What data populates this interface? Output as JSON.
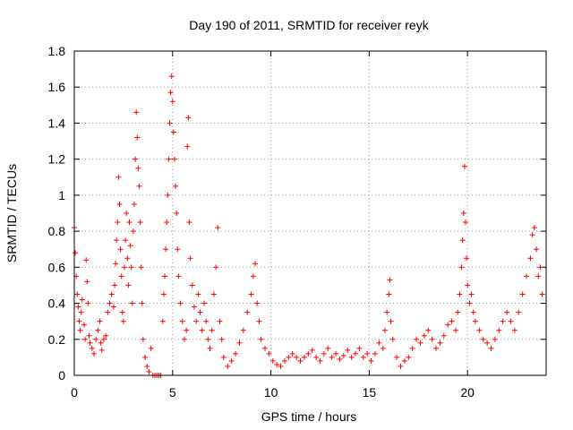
{
  "chart_data": {
    "type": "scatter",
    "title": "Day 190 of 2011, SRMTID for receiver reyk",
    "xlabel": "GPS time / hours",
    "ylabel": "SRMTID / TECUs",
    "xlim": [
      0,
      24
    ],
    "ylim": [
      0,
      1.8
    ],
    "xticks": [
      0,
      5,
      10,
      15,
      20
    ],
    "xtick_labels": [
      "0",
      "5",
      "10",
      "15",
      "20"
    ],
    "yticks": [
      0,
      0.2,
      0.4,
      0.6,
      0.8,
      1.0,
      1.2,
      1.4,
      1.6,
      1.8
    ],
    "ytick_labels": [
      "0",
      "0.2",
      "0.4",
      "0.6",
      "0.8",
      "1",
      "1.2",
      "1.4",
      "1.6",
      "1.8"
    ],
    "grid": true,
    "marker": "+",
    "color": "#ff0000",
    "series": [
      {
        "name": "SRMTID",
        "points": [
          [
            0.0,
            0.82
          ],
          [
            0.05,
            0.68
          ],
          [
            0.1,
            0.55
          ],
          [
            0.15,
            0.45
          ],
          [
            0.2,
            0.38
          ],
          [
            0.25,
            0.3
          ],
          [
            0.3,
            0.25
          ],
          [
            0.35,
            0.35
          ],
          [
            0.4,
            0.42
          ],
          [
            0.5,
            0.28
          ],
          [
            0.55,
            0.2
          ],
          [
            0.6,
            0.64
          ],
          [
            0.65,
            0.52
          ],
          [
            0.7,
            0.4
          ],
          [
            0.75,
            0.22
          ],
          [
            0.8,
            0.18
          ],
          [
            0.9,
            0.15
          ],
          [
            1.0,
            0.12
          ],
          [
            1.1,
            0.2
          ],
          [
            1.2,
            0.25
          ],
          [
            1.3,
            0.3
          ],
          [
            1.35,
            0.18
          ],
          [
            1.4,
            0.14
          ],
          [
            1.5,
            0.2
          ],
          [
            1.6,
            0.22
          ],
          [
            1.7,
            0.35
          ],
          [
            1.8,
            0.4
          ],
          [
            1.9,
            0.45
          ],
          [
            2.0,
            0.38
          ],
          [
            2.05,
            0.5
          ],
          [
            2.1,
            0.62
          ],
          [
            2.15,
            0.75
          ],
          [
            2.2,
            0.85
          ],
          [
            2.25,
            1.1
          ],
          [
            2.3,
            0.95
          ],
          [
            2.35,
            0.7
          ],
          [
            2.4,
            0.55
          ],
          [
            2.45,
            0.35
          ],
          [
            2.5,
            0.3
          ],
          [
            2.55,
            0.6
          ],
          [
            2.6,
            0.75
          ],
          [
            2.65,
            0.9
          ],
          [
            2.7,
            0.65
          ],
          [
            2.75,
            0.5
          ],
          [
            2.8,
            0.85
          ],
          [
            2.85,
            0.72
          ],
          [
            2.9,
            0.6
          ],
          [
            2.95,
            0.4
          ],
          [
            3.0,
            0.8
          ],
          [
            3.05,
            0.95
          ],
          [
            3.1,
            1.2
          ],
          [
            3.15,
            1.46
          ],
          [
            3.2,
            1.32
          ],
          [
            3.25,
            1.15
          ],
          [
            3.3,
            1.05
          ],
          [
            3.35,
            0.85
          ],
          [
            3.4,
            0.6
          ],
          [
            3.45,
            0.4
          ],
          [
            3.5,
            0.2
          ],
          [
            3.6,
            0.1
          ],
          [
            3.7,
            0.05
          ],
          [
            3.8,
            0.02
          ],
          [
            3.9,
            0.15
          ],
          [
            4.0,
            0.0
          ],
          [
            4.1,
            0.0
          ],
          [
            4.2,
            0.0
          ],
          [
            4.3,
            0.0
          ],
          [
            4.4,
            0.0
          ],
          [
            4.5,
            0.3
          ],
          [
            4.55,
            0.45
          ],
          [
            4.6,
            0.55
          ],
          [
            4.65,
            0.7
          ],
          [
            4.7,
            0.85
          ],
          [
            4.75,
            1.0
          ],
          [
            4.8,
            1.2
          ],
          [
            4.85,
            1.4
          ],
          [
            4.9,
            1.57
          ],
          [
            4.95,
            1.66
          ],
          [
            5.0,
            1.52
          ],
          [
            5.05,
            1.35
          ],
          [
            5.1,
            1.2
          ],
          [
            5.15,
            1.05
          ],
          [
            5.2,
            0.9
          ],
          [
            5.25,
            0.7
          ],
          [
            5.3,
            0.55
          ],
          [
            5.4,
            0.4
          ],
          [
            5.5,
            0.3
          ],
          [
            5.6,
            0.2
          ],
          [
            5.7,
            0.25
          ],
          [
            5.75,
            1.27
          ],
          [
            5.8,
            1.43
          ],
          [
            5.85,
            0.85
          ],
          [
            5.9,
            0.65
          ],
          [
            6.0,
            0.5
          ],
          [
            6.1,
            0.38
          ],
          [
            6.2,
            0.3
          ],
          [
            6.3,
            0.45
          ],
          [
            6.4,
            0.35
          ],
          [
            6.5,
            0.25
          ],
          [
            6.6,
            0.4
          ],
          [
            6.7,
            0.3
          ],
          [
            6.8,
            0.2
          ],
          [
            6.9,
            0.15
          ],
          [
            7.0,
            0.25
          ],
          [
            7.1,
            0.45
          ],
          [
            7.2,
            0.6
          ],
          [
            7.3,
            0.82
          ],
          [
            7.4,
            0.3
          ],
          [
            7.5,
            0.2
          ],
          [
            7.6,
            0.1
          ],
          [
            7.8,
            0.05
          ],
          [
            8.0,
            0.08
          ],
          [
            8.2,
            0.12
          ],
          [
            8.4,
            0.18
          ],
          [
            8.6,
            0.25
          ],
          [
            8.8,
            0.35
          ],
          [
            9.0,
            0.45
          ],
          [
            9.1,
            0.55
          ],
          [
            9.2,
            0.62
          ],
          [
            9.3,
            0.4
          ],
          [
            9.4,
            0.3
          ],
          [
            9.5,
            0.2
          ],
          [
            9.7,
            0.15
          ],
          [
            9.9,
            0.12
          ],
          [
            10.1,
            0.08
          ],
          [
            10.3,
            0.06
          ],
          [
            10.5,
            0.05
          ],
          [
            10.7,
            0.08
          ],
          [
            10.9,
            0.1
          ],
          [
            11.1,
            0.12
          ],
          [
            11.3,
            0.1
          ],
          [
            11.5,
            0.08
          ],
          [
            11.7,
            0.1
          ],
          [
            11.9,
            0.12
          ],
          [
            12.1,
            0.14
          ],
          [
            12.3,
            0.1
          ],
          [
            12.5,
            0.08
          ],
          [
            12.7,
            0.12
          ],
          [
            12.9,
            0.15
          ],
          [
            13.1,
            0.1
          ],
          [
            13.3,
            0.12
          ],
          [
            13.5,
            0.09
          ],
          [
            13.7,
            0.11
          ],
          [
            13.9,
            0.14
          ],
          [
            14.1,
            0.1
          ],
          [
            14.3,
            0.12
          ],
          [
            14.5,
            0.15
          ],
          [
            14.7,
            0.1
          ],
          [
            14.9,
            0.12
          ],
          [
            15.1,
            0.08
          ],
          [
            15.3,
            0.12
          ],
          [
            15.5,
            0.18
          ],
          [
            15.7,
            0.15
          ],
          [
            15.8,
            0.25
          ],
          [
            15.9,
            0.35
          ],
          [
            16.0,
            0.45
          ],
          [
            16.05,
            0.53
          ],
          [
            16.1,
            0.3
          ],
          [
            16.2,
            0.2
          ],
          [
            16.4,
            0.1
          ],
          [
            16.6,
            0.05
          ],
          [
            16.8,
            0.08
          ],
          [
            17.0,
            0.1
          ],
          [
            17.2,
            0.15
          ],
          [
            17.4,
            0.2
          ],
          [
            17.6,
            0.18
          ],
          [
            17.8,
            0.22
          ],
          [
            18.0,
            0.25
          ],
          [
            18.2,
            0.2
          ],
          [
            18.4,
            0.15
          ],
          [
            18.6,
            0.18
          ],
          [
            18.8,
            0.22
          ],
          [
            19.0,
            0.28
          ],
          [
            19.2,
            0.3
          ],
          [
            19.4,
            0.25
          ],
          [
            19.5,
            0.35
          ],
          [
            19.6,
            0.45
          ],
          [
            19.7,
            0.6
          ],
          [
            19.75,
            0.75
          ],
          [
            19.8,
            0.9
          ],
          [
            19.85,
            1.16
          ],
          [
            19.9,
            0.85
          ],
          [
            19.95,
            0.65
          ],
          [
            20.0,
            0.5
          ],
          [
            20.1,
            0.4
          ],
          [
            20.2,
            0.45
          ],
          [
            20.3,
            0.35
          ],
          [
            20.4,
            0.3
          ],
          [
            20.6,
            0.25
          ],
          [
            20.8,
            0.2
          ],
          [
            21.0,
            0.18
          ],
          [
            21.2,
            0.15
          ],
          [
            21.4,
            0.2
          ],
          [
            21.6,
            0.25
          ],
          [
            21.8,
            0.3
          ],
          [
            22.0,
            0.35
          ],
          [
            22.2,
            0.3
          ],
          [
            22.4,
            0.25
          ],
          [
            22.6,
            0.35
          ],
          [
            22.8,
            0.45
          ],
          [
            23.0,
            0.55
          ],
          [
            23.2,
            0.65
          ],
          [
            23.3,
            0.78
          ],
          [
            23.4,
            0.82
          ],
          [
            23.5,
            0.7
          ],
          [
            23.6,
            0.55
          ],
          [
            23.7,
            0.6
          ],
          [
            23.8,
            0.45
          ]
        ]
      }
    ]
  }
}
